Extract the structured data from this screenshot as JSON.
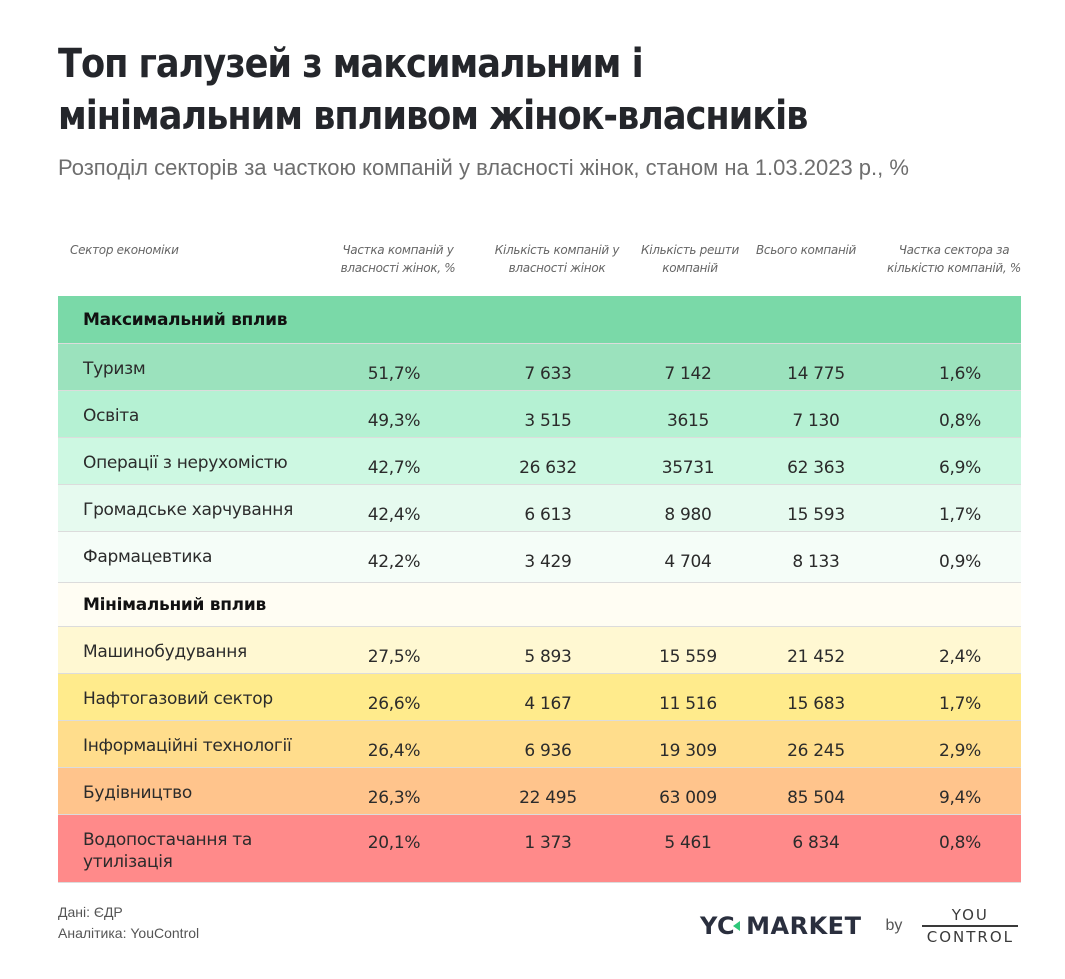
{
  "header": {
    "title_line1": "Топ галузей з максимальним і",
    "title_line2": "мінімальним впливом жінок-власників",
    "subtitle": "Розподіл секторів за часткою компаній у власності жінок, станом на 1.03.2023 р., %"
  },
  "columns": [
    "Сектор економіки",
    "Частка компаній у власності жінок, %",
    "Кількість компаній у власності жінок",
    "Кількість решти компаній",
    "Всього компаній",
    "Частка сектора за кількістю компаній, %"
  ],
  "groups": {
    "max": {
      "label": "Максимальний вплив",
      "color": "#7ad9a8"
    },
    "min": {
      "label": "Мінімальний вплив",
      "color": "#fffdf3"
    }
  },
  "rows": [
    {
      "sector": "Туризм",
      "share_women": "51,7%",
      "women_companies": "7 633",
      "other_companies": "7 142",
      "total": "14 775",
      "sector_share": "1,6%",
      "color": "#9be2bd"
    },
    {
      "sector": "Освіта",
      "share_women": "49,3%",
      "women_companies": "3 515",
      "other_companies": "3615",
      "total": "7 130",
      "sector_share": "0,8%",
      "color": "#b5f1d3"
    },
    {
      "sector": "Операції з нерухомістю",
      "share_women": "42,7%",
      "women_companies": "26 632",
      "other_companies": "35731",
      "total": "62 363",
      "sector_share": "6,9%",
      "color": "#cdf8e2"
    },
    {
      "sector": "Громадське харчування",
      "share_women": "42,4%",
      "women_companies": "6 613",
      "other_companies": "8 980",
      "total": "15 593",
      "sector_share": "1,7%",
      "color": "#e6faef"
    },
    {
      "sector": "Фармацевтика",
      "share_women": "42,2%",
      "women_companies": "3 429",
      "other_companies": "4 704",
      "total": "8 133",
      "sector_share": "0,9%",
      "color": "#f5fdf8"
    },
    {
      "sector": "Машинобудування",
      "share_women": "27,5%",
      "women_companies": "5 893",
      "other_companies": "15 559",
      "total": "21 452",
      "sector_share": "2,4%",
      "color": "#fff8d2"
    },
    {
      "sector": "Нафтогазовий сектор",
      "share_women": "26,6%",
      "women_companies": "4 167",
      "other_companies": "11 516",
      "total": "15 683",
      "sector_share": "1,7%",
      "color": "#ffeb8c"
    },
    {
      "sector": "Інформаційні технології",
      "share_women": "26,4%",
      "women_companies": "6 936",
      "other_companies": "19 309",
      "total": "26 245",
      "sector_share": "2,9%",
      "color": "#ffdd8c"
    },
    {
      "sector": "Будівництво",
      "share_women": "26,3%",
      "women_companies": "22 495",
      "other_companies": "63 009",
      "total": "85 504",
      "sector_share": "9,4%",
      "color": "#ffc48c"
    },
    {
      "sector": "Водопостачання та утилізація",
      "share_women": "20,1%",
      "women_companies": "1 373",
      "other_companies": "5 461",
      "total": "6 834",
      "sector_share": "0,8%",
      "color": "#ff8a8a"
    }
  ],
  "footer": {
    "data_source": "Дані: ЄДР",
    "analytics": "Аналітика: YouControl"
  },
  "logo": {
    "brand_left": "YC",
    "brand_right": "MARKET",
    "by": "by",
    "yc_top": "YOU",
    "yc_bottom": "CONTROL",
    "accent_color": "#2ec77a"
  },
  "chart_data": {
    "type": "table",
    "title": "Топ галузей з максимальним і мінімальним впливом жінок-власників",
    "subtitle": "Розподіл секторів за часткою компаній у власності жінок, станом на 1.03.2023 р., %",
    "columns": [
      "Сектор економіки",
      "Частка компаній у власності жінок, %",
      "Кількість компаній у власності жінок",
      "Кількість решти компаній",
      "Всього компаній",
      "Частка сектора за кількістю компаній, %"
    ],
    "groups": [
      {
        "name": "Максимальний вплив",
        "rows": [
          [
            "Туризм",
            51.7,
            7633,
            7142,
            14775,
            1.6
          ],
          [
            "Освіта",
            49.3,
            3515,
            3615,
            7130,
            0.8
          ],
          [
            "Операції з нерухомістю",
            42.7,
            26632,
            35731,
            62363,
            6.9
          ],
          [
            "Громадське харчування",
            42.4,
            6613,
            8980,
            15593,
            1.7
          ],
          [
            "Фармацевтика",
            42.2,
            3429,
            4704,
            8133,
            0.9
          ]
        ]
      },
      {
        "name": "Мінімальний вплив",
        "rows": [
          [
            "Машинобудування",
            27.5,
            5893,
            15559,
            21452,
            2.4
          ],
          [
            "Нафтогазовий сектор",
            26.6,
            4167,
            11516,
            15683,
            1.7
          ],
          [
            "Інформаційні технології",
            26.4,
            6936,
            19309,
            26245,
            2.9
          ],
          [
            "Будівництво",
            26.3,
            22495,
            63009,
            85504,
            9.4
          ],
          [
            "Водопостачання та утилізація",
            20.1,
            1373,
            5461,
            6834,
            0.8
          ]
        ]
      }
    ],
    "source": "Дані: ЄДР; Аналітика: YouControl"
  }
}
